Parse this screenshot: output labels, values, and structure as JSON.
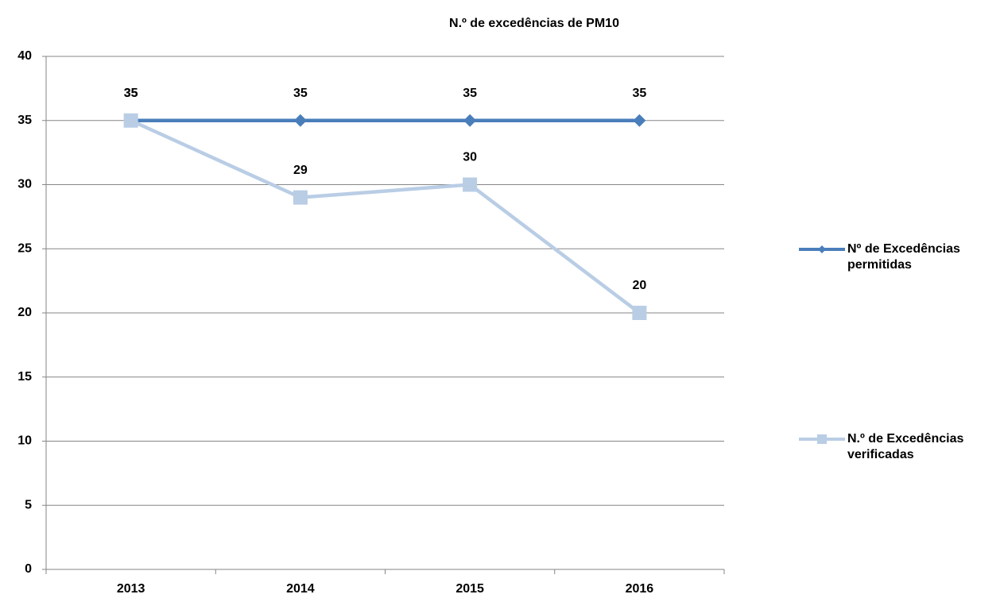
{
  "chart_data": {
    "type": "line",
    "title": "N.º de excedências de PM10",
    "categories": [
      "2013",
      "2014",
      "2015",
      "2016"
    ],
    "series": [
      {
        "name": "Nº de Excedências permitidas",
        "color": "#4a7ebb",
        "marker": "diamond",
        "values": [
          35,
          35,
          35,
          35
        ]
      },
      {
        "name": "N.º de Excedências verificadas",
        "color": "#b9cde5",
        "marker": "square",
        "values": [
          35,
          29,
          30,
          20
        ]
      }
    ],
    "ylim": [
      0,
      40
    ],
    "yticks": [
      0,
      5,
      10,
      15,
      20,
      25,
      30,
      35,
      40
    ],
    "grid": true,
    "legend": "right"
  }
}
